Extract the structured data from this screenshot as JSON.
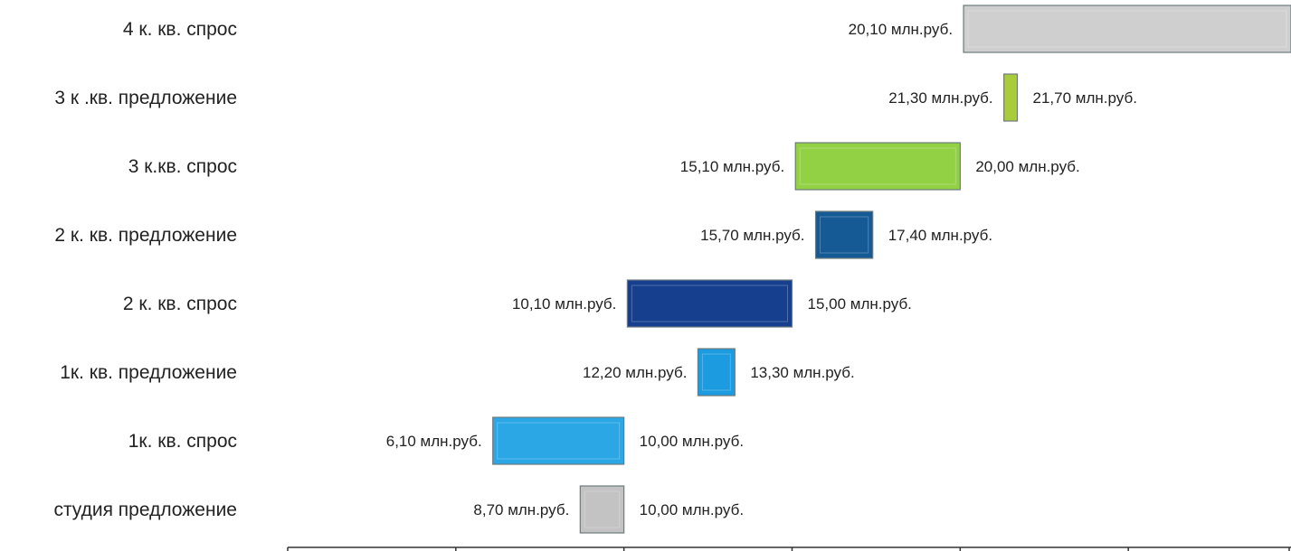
{
  "chart_data": {
    "type": "bar",
    "orientation": "horizontal",
    "value_unit": "млн.руб.",
    "categories": [
      "4 к. кв. спрос",
      "3 к .кв. предложение",
      "3 к.кв. спрос",
      "2 к. кв. предложение",
      "2 к. кв. спрос",
      "1к. кв. предложение",
      "1к. кв. спрос",
      "студия предложение"
    ],
    "series": [
      {
        "low": [
          20.1,
          21.3,
          15.1,
          15.7,
          10.1,
          12.2,
          6.1,
          8.7
        ],
        "high": [
          null,
          21.7,
          20.0,
          17.4,
          15.0,
          13.3,
          10.0,
          10.0
        ]
      }
    ],
    "low_labels": [
      "20,10 млн.руб.",
      "21,30 млн.руб.",
      "15,10 млн.руб.",
      "15,70 млн.руб.",
      "10,10 млн.руб.",
      "12,20 млн.руб.",
      "6,10 млн.руб.",
      "8,70 млн.руб."
    ],
    "high_labels": [
      "",
      "21,70 млн.руб.",
      "20,00 млн.руб.",
      "17,40 млн.руб.",
      "15,00 млн.руб.",
      "13,30 млн.руб.",
      "10,00 млн.руб.",
      "10,00 млн.руб."
    ],
    "colors": [
      "#cfcfcf",
      "#a8cc3c",
      "#92d143",
      "#155a95",
      "#163f8e",
      "#1c9be0",
      "#2aa7e4",
      "#c3c3c3"
    ],
    "xlim": [
      0,
      30
    ],
    "grid": false,
    "legend": "none"
  }
}
